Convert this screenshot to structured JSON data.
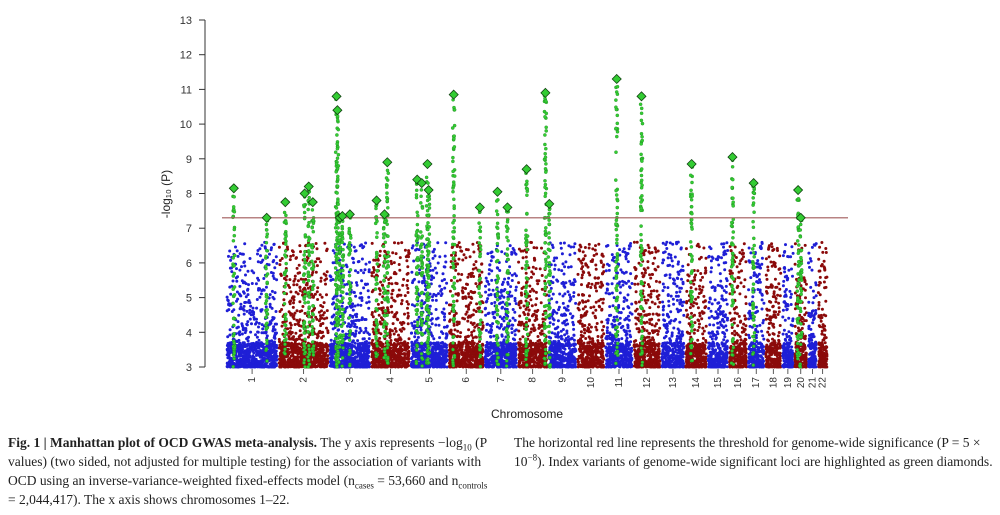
{
  "chart_data": {
    "type": "scatter",
    "title": "",
    "xlabel": "Chromosome",
    "ylabel": "-log₁₀ (P)",
    "ylim": [
      3,
      13
    ],
    "yticks": [
      3,
      4,
      5,
      6,
      7,
      8,
      9,
      10,
      11,
      12,
      13
    ],
    "threshold": 7.3,
    "threshold_color": "#a05a5a",
    "colors": {
      "odd": "#1f1fd6",
      "even": "#8b0a0a",
      "highlight": "#33cc33",
      "diamond_edge": "#114411"
    },
    "chromosomes": [
      "1",
      "2",
      "3",
      "4",
      "5",
      "6",
      "7",
      "8",
      "9",
      "10",
      "11",
      "12",
      "13",
      "14",
      "15",
      "16",
      "17",
      "18",
      "19",
      "20",
      "21",
      "22"
    ],
    "chrom_lengths": [
      249,
      243,
      198,
      190,
      181,
      171,
      159,
      145,
      138,
      134,
      135,
      133,
      114,
      107,
      102,
      90,
      83,
      80,
      59,
      64,
      47,
      51
    ],
    "index_variants": [
      {
        "chr": "1",
        "pos": 0.15,
        "logp": 8.15
      },
      {
        "chr": "1",
        "pos": 0.78,
        "logp": 7.3
      },
      {
        "chr": "2",
        "pos": 0.14,
        "logp": 7.75
      },
      {
        "chr": "2",
        "pos": 0.52,
        "logp": 8.0
      },
      {
        "chr": "2",
        "pos": 0.6,
        "logp": 8.2
      },
      {
        "chr": "2",
        "pos": 0.68,
        "logp": 7.75
      },
      {
        "chr": "3",
        "pos": 0.18,
        "logp": 10.8
      },
      {
        "chr": "3",
        "pos": 0.2,
        "logp": 10.4
      },
      {
        "chr": "3",
        "pos": 0.26,
        "logp": 7.3
      },
      {
        "chr": "3",
        "pos": 0.32,
        "logp": 7.35
      },
      {
        "chr": "3",
        "pos": 0.5,
        "logp": 7.4
      },
      {
        "chr": "4",
        "pos": 0.15,
        "logp": 7.8
      },
      {
        "chr": "4",
        "pos": 0.42,
        "logp": 8.9
      },
      {
        "chr": "4",
        "pos": 0.35,
        "logp": 7.4
      },
      {
        "chr": "5",
        "pos": 0.18,
        "logp": 8.4
      },
      {
        "chr": "5",
        "pos": 0.3,
        "logp": 8.3
      },
      {
        "chr": "5",
        "pos": 0.45,
        "logp": 8.85
      },
      {
        "chr": "5",
        "pos": 0.48,
        "logp": 8.1
      },
      {
        "chr": "6",
        "pos": 0.15,
        "logp": 10.85
      },
      {
        "chr": "6",
        "pos": 0.88,
        "logp": 7.6
      },
      {
        "chr": "7",
        "pos": 0.4,
        "logp": 8.05
      },
      {
        "chr": "7",
        "pos": 0.7,
        "logp": 7.6
      },
      {
        "chr": "8",
        "pos": 0.3,
        "logp": 8.7
      },
      {
        "chr": "8",
        "pos": 0.92,
        "logp": 10.9
      },
      {
        "chr": "9",
        "pos": 0.05,
        "logp": 7.7
      },
      {
        "chr": "11",
        "pos": 0.42,
        "logp": 11.3
      },
      {
        "chr": "12",
        "pos": 0.3,
        "logp": 10.8
      },
      {
        "chr": "14",
        "pos": 0.3,
        "logp": 8.85
      },
      {
        "chr": "16",
        "pos": 0.2,
        "logp": 9.05
      },
      {
        "chr": "17",
        "pos": 0.35,
        "logp": 8.3
      },
      {
        "chr": "20",
        "pos": 0.3,
        "logp": 8.1
      },
      {
        "chr": "20",
        "pos": 0.5,
        "logp": 7.3
      }
    ]
  },
  "caption": {
    "fig_label": "Fig. 1 | Manhattan plot of OCD GWAS meta-analysis.",
    "left_1": " The y axis represents −log",
    "left_sub10": "10",
    "left_2": " (P values) (two sided, not adjusted for multiple testing) for the association of variants with OCD using an inverse-variance-weighted fixed-effects model (n",
    "left_sub_cases": "cases",
    "left_3": " = 53,660 and n",
    "left_sub_controls": "controls",
    "left_4": " = 2,044,417). The x axis shows chromosomes 1–22.",
    "right_1": "The horizontal red line represents the threshold for genome-wide significance (P = 5 × 10",
    "right_sup": "−8",
    "right_2": "). Index variants of genome-wide significant loci are highlighted as green diamonds."
  }
}
